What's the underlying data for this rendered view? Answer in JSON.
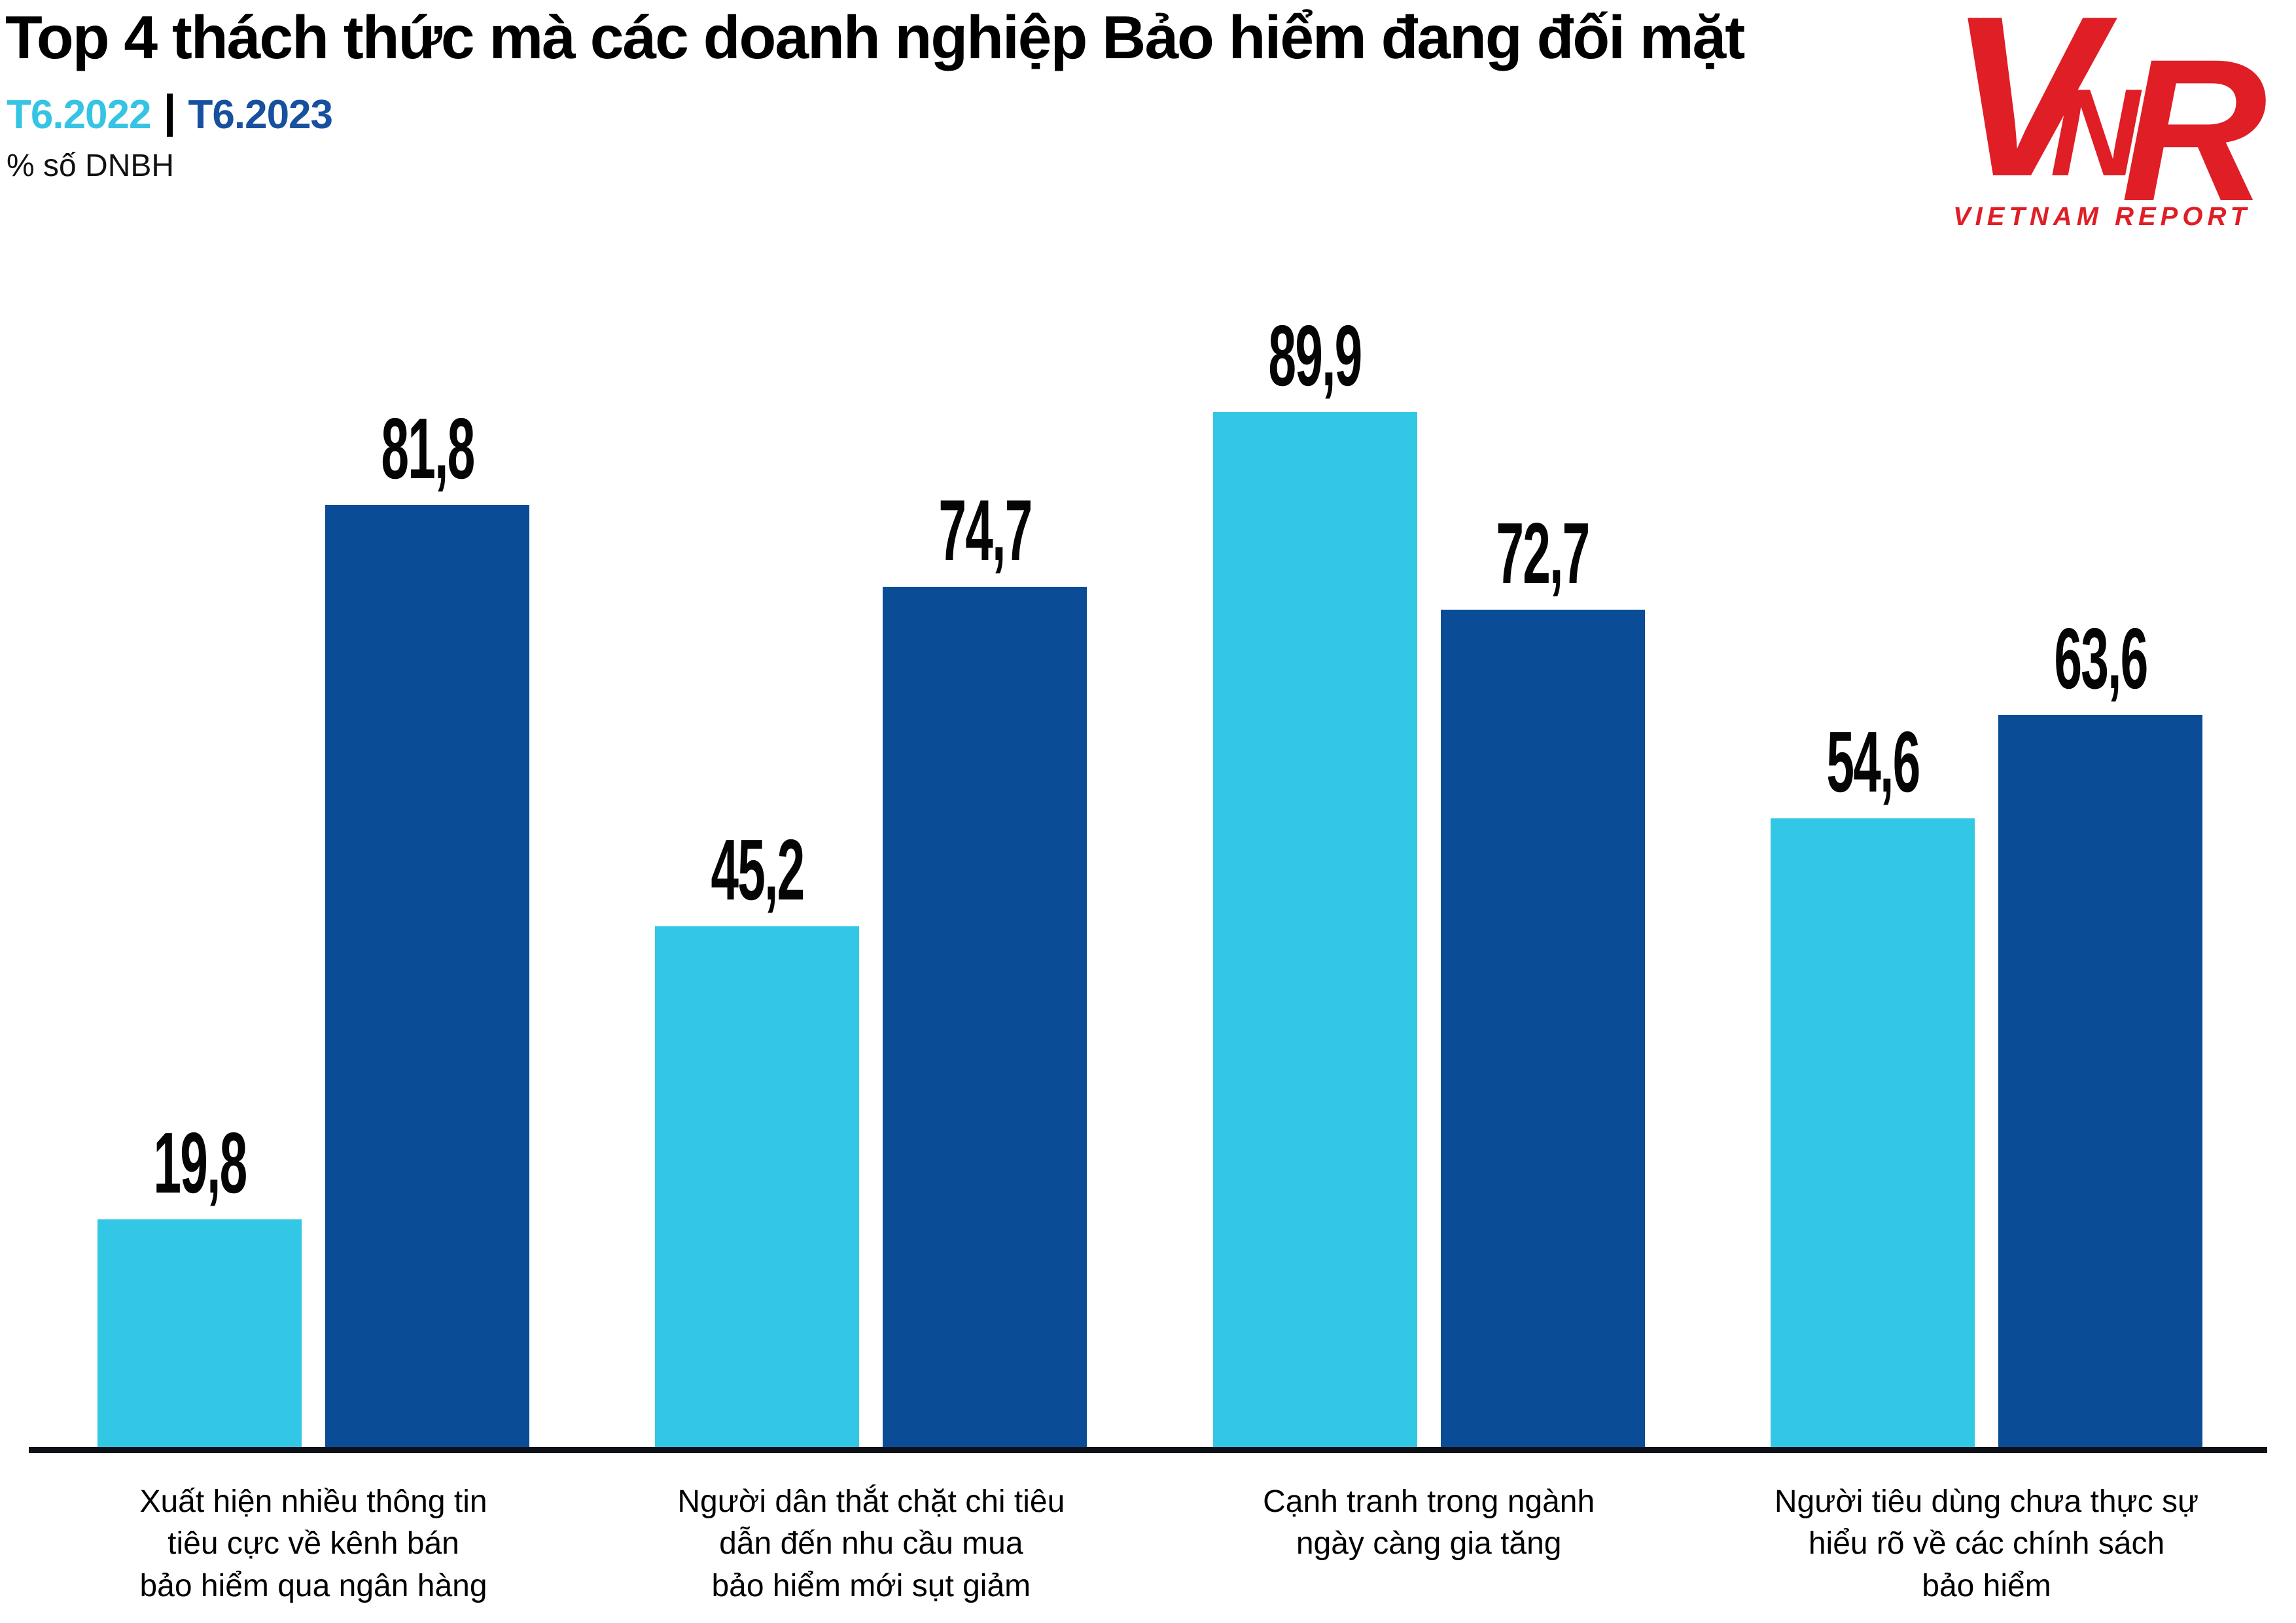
{
  "header": {
    "title": "Top 4 thách thức mà các doanh nghiệp Bảo hiểm đang đối mặt",
    "unit_label": "% số DNBH"
  },
  "logo": {
    "letters": [
      "V",
      "N",
      "R"
    ],
    "caption": "VIETNAM REPORT",
    "color": "#DF1E26"
  },
  "chart_data": {
    "type": "bar",
    "title": "Top 4 thách thức mà các doanh nghiệp Bảo hiểm đang đối mặt",
    "ylabel": "% số DNBH",
    "ylim": [
      0,
      100
    ],
    "grid": false,
    "legend_position": "top-left",
    "decimal_separator": ",",
    "categories": [
      [
        "Xuất hiện nhiều thông tin",
        "tiêu cực về kênh bán",
        "bảo hiểm qua ngân hàng"
      ],
      [
        "Người dân thắt chặt chi tiêu",
        "dẫn đến nhu cầu mua",
        "bảo hiểm mới sụt giảm"
      ],
      [
        "Cạnh tranh trong ngành",
        "ngày càng gia tăng"
      ],
      [
        "Người tiêu dùng chưa thực sự",
        "hiểu rõ về các chính sách",
        "bảo hiểm"
      ]
    ],
    "series": [
      {
        "name": "T6.2022",
        "color": "#31C7E5",
        "legend_color": "#35C4E3",
        "values": [
          19.8,
          45.2,
          89.9,
          54.6
        ]
      },
      {
        "name": "T6.2023",
        "color": "#0A4C95",
        "legend_color": "#17509E",
        "values": [
          81.8,
          74.7,
          72.7,
          63.6
        ]
      }
    ]
  }
}
